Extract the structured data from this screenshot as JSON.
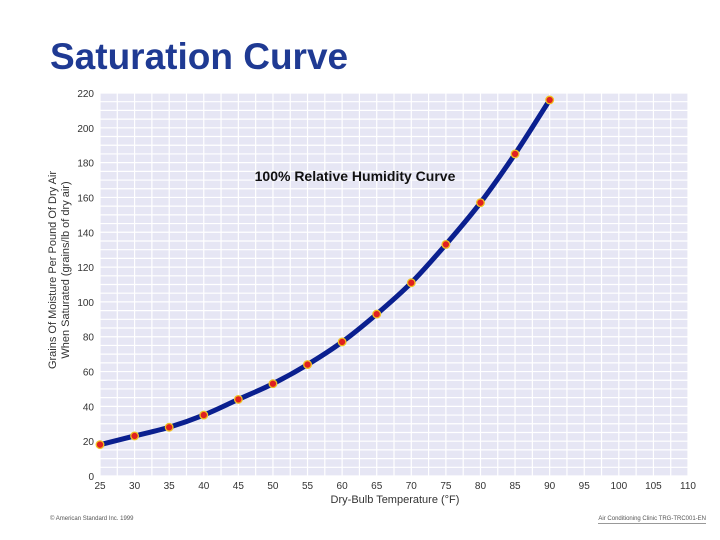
{
  "slide": {
    "title": "Saturation Curve",
    "copyright": "© American Standard Inc. 1999",
    "footer_right": "Air Conditioning Clinic TRG-TRC001-EN"
  },
  "colors": {
    "title": "#1f3a93",
    "curve": "#0a1f8f",
    "marker_fill": "#e02020",
    "marker_edge": "#f0c020",
    "plot_background": "#e6e6f4",
    "grid": "#ffffff"
  },
  "chart_data": {
    "type": "line",
    "annotation": "100% Relative Humidity Curve",
    "ylabel_lines": [
      "Grains Of Moisture Per Pound Of Dry Air",
      "When Saturated (grains/lb of dry air)"
    ],
    "xlabel": "Dry-Bulb Temperature (°F)",
    "xlim": [
      25,
      110
    ],
    "ylim": [
      0,
      220
    ],
    "x_ticks": [
      25,
      30,
      35,
      40,
      45,
      50,
      55,
      60,
      65,
      70,
      75,
      80,
      85,
      90,
      95,
      100,
      105,
      110
    ],
    "y_ticks": [
      0,
      20,
      40,
      60,
      80,
      100,
      120,
      140,
      160,
      180,
      200,
      220
    ],
    "grid": true,
    "series": [
      {
        "x": [
          25,
          30,
          35,
          40,
          45,
          50,
          55,
          60,
          65,
          70,
          75,
          80,
          85,
          90
        ],
        "y": [
          18,
          23,
          28,
          35,
          44,
          53,
          64,
          77,
          93,
          111,
          133,
          157,
          185,
          216
        ]
      }
    ]
  }
}
